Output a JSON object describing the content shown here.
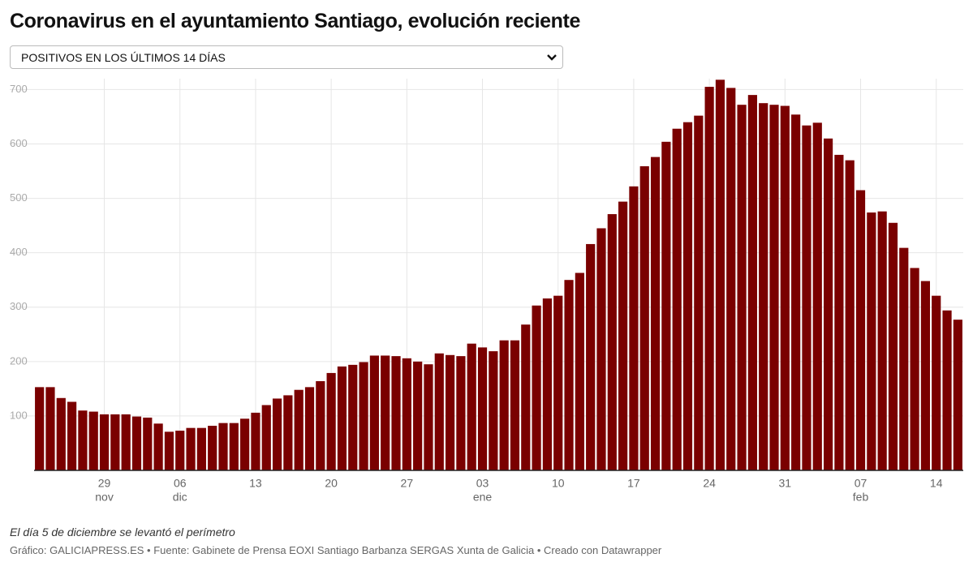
{
  "title": "Coronavirus en el ayuntamiento Santiago, evolución reciente",
  "dropdown": {
    "selected": "POSITIVOS EN LOS ÚLTIMOS 14 DÍAS"
  },
  "chart_data": {
    "type": "bar",
    "color": "#7a0000",
    "categories": [
      null,
      null,
      null,
      null,
      null,
      null,
      "29",
      null,
      null,
      null,
      null,
      null,
      null,
      "06",
      null,
      null,
      null,
      null,
      null,
      null,
      "13",
      null,
      null,
      null,
      null,
      null,
      null,
      "20",
      null,
      null,
      null,
      null,
      null,
      null,
      "27",
      null,
      null,
      null,
      null,
      null,
      null,
      "03",
      null,
      null,
      null,
      null,
      null,
      null,
      "10",
      null,
      null,
      null,
      null,
      null,
      null,
      "17",
      null,
      null,
      null,
      null,
      null,
      null,
      "24",
      null,
      null,
      null,
      null,
      null,
      null,
      "31",
      null,
      null,
      null,
      null,
      null,
      null,
      "07",
      null,
      null,
      null,
      null,
      null,
      null,
      "14",
      null,
      null
    ],
    "category_months": [
      null,
      null,
      null,
      null,
      null,
      null,
      "nov",
      null,
      null,
      null,
      null,
      null,
      null,
      "dic",
      null,
      null,
      null,
      null,
      null,
      null,
      null,
      null,
      null,
      null,
      null,
      null,
      null,
      null,
      null,
      null,
      null,
      null,
      null,
      null,
      null,
      null,
      null,
      null,
      null,
      null,
      null,
      "ene",
      null,
      null,
      null,
      null,
      null,
      null,
      null,
      null,
      null,
      null,
      null,
      null,
      null,
      null,
      null,
      null,
      null,
      null,
      null,
      null,
      null,
      null,
      null,
      null,
      null,
      null,
      null,
      null,
      null,
      null,
      null,
      null,
      null,
      null,
      "feb",
      null,
      null,
      null,
      null,
      null,
      null,
      null,
      null,
      null
    ],
    "values": [
      153,
      153,
      133,
      126,
      110,
      108,
      103,
      103,
      103,
      99,
      97,
      86,
      71,
      73,
      78,
      78,
      82,
      87,
      87,
      95,
      106,
      120,
      132,
      138,
      148,
      153,
      164,
      179,
      191,
      194,
      199,
      211,
      211,
      210,
      206,
      200,
      195,
      215,
      212,
      210,
      233,
      226,
      219,
      239,
      239,
      268,
      303,
      316,
      321,
      350,
      363,
      416,
      445,
      471,
      494,
      522,
      559,
      576,
      604,
      628,
      640,
      652,
      705,
      718,
      703,
      672,
      690,
      675,
      672,
      670,
      654,
      634,
      639,
      610,
      580,
      570,
      515,
      474,
      476,
      455,
      409,
      372,
      348,
      321,
      294,
      277
    ],
    "ylim": [
      0,
      720
    ],
    "yticks": [
      100,
      200,
      300,
      400,
      500,
      600,
      700
    ],
    "grid": true
  },
  "note": "El día 5 de diciembre se levantó el perímetro",
  "source": "Gráfico: GALICIAPRESS.ES • Fuente: Gabinete de Prensa EOXI Santiago Barbanza SERGAS Xunta de Galicia • Creado con Datawrapper"
}
